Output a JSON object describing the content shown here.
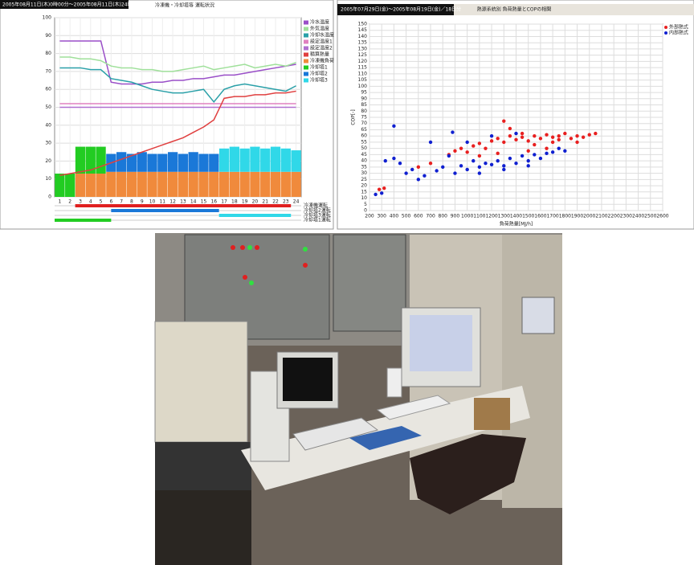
{
  "chart_data": [
    {
      "type": "combo",
      "header": "2005年08月11日(木)0時00分～2005年08月11日(木)24時00分 / 1日分",
      "title": "冷凍機・冷却塔等 運転状況",
      "categories": [
        "1",
        "2",
        "3",
        "4",
        "5",
        "6",
        "7",
        "8",
        "9",
        "10",
        "11",
        "12",
        "13",
        "14",
        "15",
        "16",
        "17",
        "18",
        "19",
        "20",
        "21",
        "22",
        "23",
        "24"
      ],
      "ylim": [
        0,
        100
      ],
      "yticks": [
        0,
        10,
        20,
        30,
        40,
        50,
        60,
        70,
        80,
        90,
        100
      ],
      "grid": true,
      "series": [
        {
          "name": "冷水温度",
          "kind": "line",
          "color": "#9a4fc8",
          "values": [
            87,
            87,
            87,
            87,
            87,
            64,
            63,
            63,
            63,
            64,
            64,
            65,
            65,
            66,
            66,
            67,
            68,
            68,
            69,
            70,
            71,
            72,
            73,
            74
          ]
        },
        {
          "name": "外気温度",
          "kind": "line",
          "color": "#9fe09a",
          "values": [
            78,
            78,
            77,
            77,
            76,
            73,
            72,
            72,
            71,
            71,
            70,
            70,
            71,
            72,
            73,
            71,
            72,
            73,
            74,
            72,
            73,
            74,
            73,
            75
          ]
        },
        {
          "name": "冷却水温度",
          "kind": "line",
          "color": "#2aa0a8",
          "values": [
            72,
            72,
            72,
            71,
            71,
            66,
            65,
            64,
            62,
            60,
            59,
            58,
            58,
            59,
            60,
            53,
            60,
            62,
            63,
            62,
            61,
            60,
            59,
            62
          ]
        },
        {
          "name": "設定温度1",
          "kind": "line",
          "color": "#e080c0",
          "values": [
            52,
            52,
            52,
            52,
            52,
            52,
            52,
            52,
            52,
            52,
            52,
            52,
            52,
            52,
            52,
            52,
            52,
            52,
            52,
            52,
            52,
            52,
            52,
            52
          ]
        },
        {
          "name": "設定温度2",
          "kind": "line",
          "color": "#b070d0",
          "values": [
            50,
            50,
            50,
            50,
            50,
            50,
            50,
            50,
            50,
            50,
            50,
            50,
            50,
            50,
            50,
            50,
            50,
            50,
            50,
            50,
            50,
            50,
            50,
            50
          ]
        },
        {
          "name": "積算熱量",
          "kind": "line",
          "color": "#e04040",
          "values": [
            12,
            13,
            14,
            15,
            17,
            19,
            21,
            23,
            25,
            27,
            29,
            31,
            33,
            36,
            39,
            43,
            55,
            56,
            56,
            57,
            57,
            58,
            58,
            59
          ]
        },
        {
          "name": "冷凍機負荷",
          "kind": "bar",
          "color": "#f08a3c",
          "values": [
            0,
            0,
            13,
            13,
            13,
            14,
            14,
            14,
            14,
            14,
            14,
            14,
            14,
            14,
            14,
            14,
            14,
            14,
            14,
            14,
            14,
            14,
            14,
            14
          ]
        },
        {
          "name": "冷却塔1",
          "kind": "bar",
          "color": "#22cc22",
          "values": [
            13,
            13,
            15,
            15,
            15,
            null,
            null,
            null,
            null,
            null,
            null,
            null,
            null,
            null,
            null,
            null,
            null,
            null,
            null,
            null,
            null,
            null,
            null,
            null
          ]
        },
        {
          "name": "冷却塔2",
          "kind": "bar",
          "color": "#1a78d8",
          "values": [
            null,
            null,
            null,
            null,
            null,
            10,
            11,
            10,
            11,
            10,
            10,
            11,
            10,
            11,
            10,
            10,
            null,
            null,
            null,
            null,
            null,
            null,
            null,
            null
          ]
        },
        {
          "name": "冷却塔3",
          "kind": "bar",
          "color": "#30d8e8",
          "values": [
            null,
            null,
            null,
            null,
            null,
            null,
            null,
            null,
            null,
            null,
            null,
            null,
            null,
            null,
            null,
            null,
            13,
            14,
            13,
            14,
            13,
            14,
            13,
            12
          ]
        }
      ],
      "status": [
        {
          "name": "冷凍機運転",
          "color": "#e02020",
          "start": 2,
          "end": 23
        },
        {
          "name": "冷却塔2運転",
          "color": "#1a78d8",
          "start": 5.5,
          "end": 16
        },
        {
          "name": "冷却塔3運転",
          "color": "#30d8e8",
          "start": 16,
          "end": 23
        },
        {
          "name": "冷却塔1運転",
          "color": "#22cc22",
          "start": 0,
          "end": 5.5
        }
      ]
    },
    {
      "type": "scatter",
      "header": "2005年07月29日(金)～2005年08月19日(金)／18日分",
      "title": "熱源系統別 負荷熱量とCOPの相関",
      "x_label": "負荷熱量[MJ/h]",
      "y_label": "COP[-]",
      "xlim": [
        200,
        2600
      ],
      "xticks": [
        200,
        300,
        400,
        500,
        600,
        700,
        800,
        900,
        1000,
        1100,
        1200,
        1300,
        1400,
        1500,
        1600,
        1700,
        1800,
        1900,
        2000,
        2100,
        2200,
        2300,
        2400,
        2500,
        2600
      ],
      "ylim": [
        0,
        150
      ],
      "yticks": [
        0,
        5,
        10,
        15,
        20,
        25,
        30,
        35,
        40,
        45,
        50,
        55,
        60,
        65,
        70,
        75,
        80,
        85,
        90,
        95,
        100,
        105,
        110,
        115,
        120,
        125,
        130,
        135,
        140,
        145,
        150
      ],
      "grid": true,
      "series": [
        {
          "name": "外部熱式",
          "color": "#e82020",
          "x": [
            280,
            320,
            600,
            700,
            850,
            900,
            950,
            1000,
            1050,
            1100,
            1150,
            1200,
            1250,
            1300,
            1350,
            1400,
            1450,
            1500,
            1550,
            1600,
            1650,
            1700,
            1750,
            1800,
            1850,
            1900,
            1950,
            2000,
            2050,
            1100,
            1300,
            1500,
            1700,
            1250,
            1450,
            1650,
            1350,
            1550,
            1750,
            1900
          ],
          "y": [
            17,
            18,
            35,
            38,
            45,
            48,
            50,
            47,
            52,
            54,
            50,
            56,
            58,
            55,
            60,
            57,
            59,
            56,
            60,
            58,
            61,
            59,
            60,
            62,
            58,
            60,
            59,
            61,
            62,
            44,
            72,
            48,
            55,
            46,
            62,
            50,
            66,
            53,
            57,
            55
          ]
        },
        {
          "name": "内部熱式",
          "color": "#1020d0",
          "x": [
            250,
            300,
            330,
            400,
            450,
            500,
            550,
            600,
            650,
            700,
            750,
            800,
            850,
            880,
            900,
            950,
            1000,
            1050,
            1100,
            1150,
            1200,
            1250,
            1300,
            1350,
            1400,
            1450,
            1500,
            1550,
            1600,
            1650,
            1700,
            1750,
            1800,
            1000,
            1200,
            1400,
            400,
            1100,
            1300,
            1500
          ],
          "y": [
            13,
            14,
            40,
            68,
            38,
            30,
            33,
            25,
            28,
            55,
            32,
            35,
            44,
            63,
            30,
            36,
            33,
            40,
            35,
            38,
            37,
            40,
            36,
            42,
            38,
            44,
            40,
            45,
            42,
            46,
            47,
            50,
            48,
            55,
            60,
            62,
            42,
            30,
            33,
            36
          ]
        }
      ]
    }
  ]
}
